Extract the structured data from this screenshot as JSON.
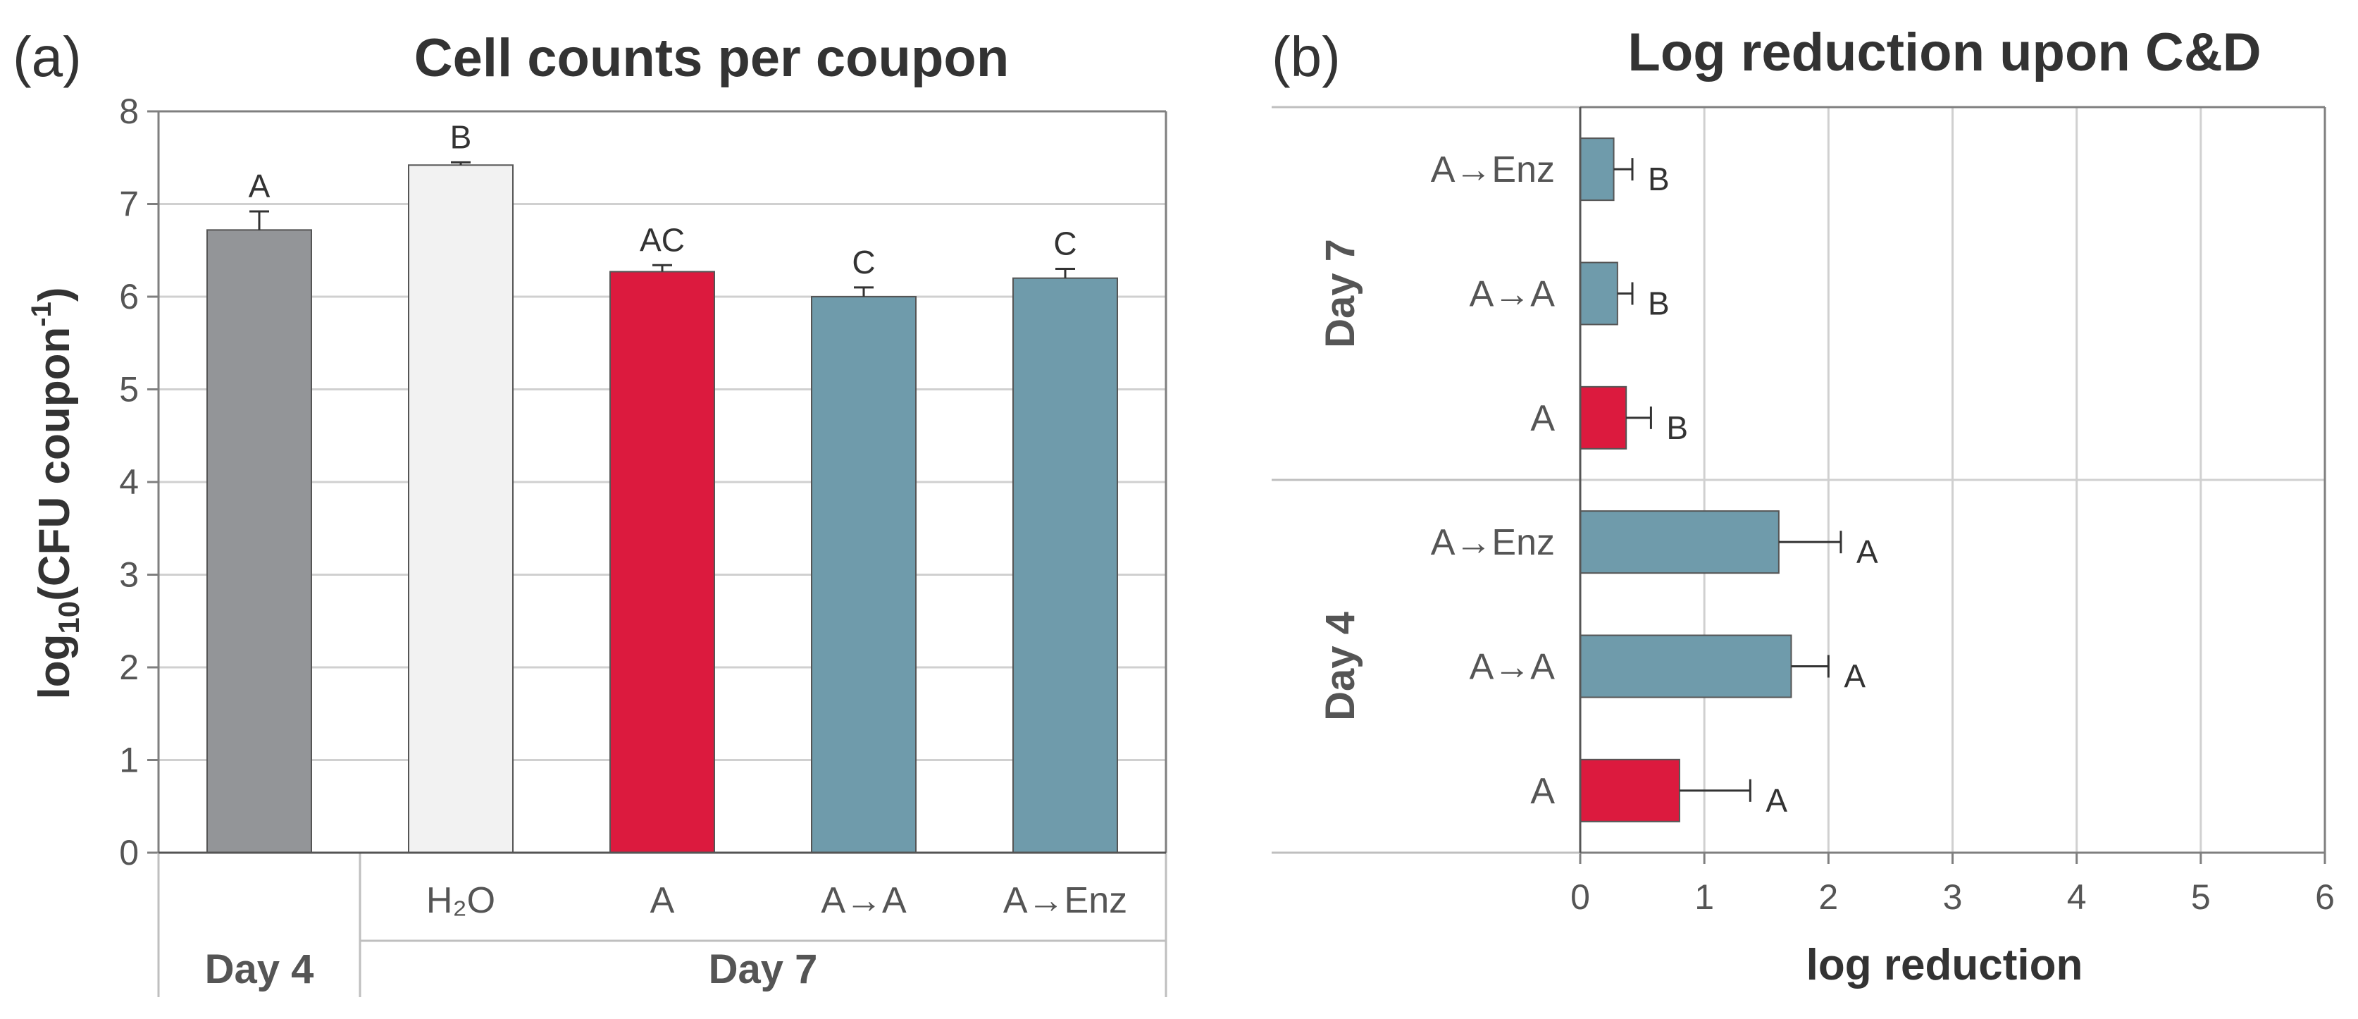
{
  "chart_data": [
    {
      "panel": "(a)",
      "type": "bar",
      "title": "Cell counts per coupon",
      "ylabel": {
        "main": "log",
        "sub": "10",
        "mid": "(CFU coupon",
        "sup": "-1",
        "end": ")"
      },
      "ylim": [
        0,
        8
      ],
      "yticks": [
        "0",
        "1",
        "2",
        "3",
        "4",
        "5",
        "6",
        "7",
        "8"
      ],
      "grid": true,
      "bars": [
        {
          "label": "",
          "value": 6.72,
          "error": 0.2,
          "letter": "A",
          "color": "#939598"
        },
        {
          "label": "H₂O",
          "value": 7.42,
          "error": 0.03,
          "letter": "B",
          "color": "#f2f2f2"
        },
        {
          "label": "A",
          "value": 6.27,
          "error": 0.07,
          "letter": "AC",
          "color": "#dc1a3e"
        },
        {
          "label": "A→A",
          "value": 6.0,
          "error": 0.1,
          "letter": "C",
          "color": "#6f9bab"
        },
        {
          "label": "A→Enz",
          "value": 6.2,
          "error": 0.1,
          "letter": "C",
          "color": "#6f9bab"
        }
      ],
      "groups": [
        {
          "label": "Day 4",
          "bars": [
            0
          ]
        },
        {
          "label": "Day 7",
          "bars": [
            1,
            2,
            3,
            4
          ]
        }
      ]
    },
    {
      "panel": "(b)",
      "type": "bar-horizontal",
      "title": "Log reduction upon C&D",
      "xlabel": "log reduction",
      "xlim": [
        0,
        6
      ],
      "xticks": [
        "0",
        "1",
        "2",
        "3",
        "4",
        "5",
        "6"
      ],
      "grid": true,
      "bars": [
        {
          "label": "A→Enz",
          "value": 0.27,
          "error": 0.15,
          "letter": "B",
          "color": "#6f9bab"
        },
        {
          "label": "A→A",
          "value": 0.3,
          "error": 0.12,
          "letter": "B",
          "color": "#6f9bab"
        },
        {
          "label": "A",
          "value": 0.37,
          "error": 0.2,
          "letter": "B",
          "color": "#dc1a3e"
        },
        {
          "label": "A→Enz",
          "value": 1.6,
          "error": 0.5,
          "letter": "A",
          "color": "#6f9bab"
        },
        {
          "label": "A→A",
          "value": 1.7,
          "error": 0.3,
          "letter": "A",
          "color": "#6f9bab"
        },
        {
          "label": "A",
          "value": 0.8,
          "error": 0.57,
          "letter": "A",
          "color": "#dc1a3e"
        }
      ],
      "groups": [
        {
          "label": "Day 7",
          "bars": [
            0,
            1,
            2
          ]
        },
        {
          "label": "Day 4",
          "bars": [
            3,
            4,
            5
          ]
        }
      ]
    }
  ]
}
